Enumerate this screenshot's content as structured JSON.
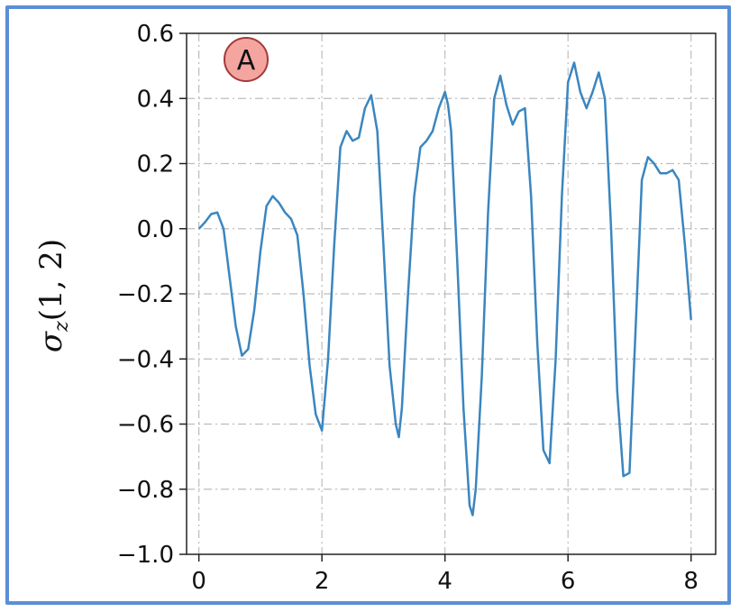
{
  "chart_data": {
    "type": "line",
    "ylabel": "σz(1, 2)",
    "panel_label": "A",
    "xlim": [
      -0.2,
      8.4
    ],
    "ylim": [
      -1.0,
      0.6
    ],
    "xticks": [
      "0",
      "2",
      "4",
      "6",
      "8"
    ],
    "yticks": [
      "0.6",
      "0.4",
      "0.2",
      "0.0",
      "−0.2",
      "−0.4",
      "−0.6",
      "−0.8",
      "−1.0"
    ],
    "grid": true,
    "colors": {
      "line": "#3a86c0",
      "badge_fill": "#f4a5a0",
      "badge_stroke": "#a23b3b",
      "frame": "#5b8fd6"
    },
    "series": [
      {
        "x": [
          0.0,
          0.1,
          0.2,
          0.3,
          0.4,
          0.5,
          0.6,
          0.7,
          0.8,
          0.9,
          1.0,
          1.1,
          1.2,
          1.3,
          1.4,
          1.5,
          1.6,
          1.7,
          1.8,
          1.9,
          2.0,
          2.1,
          2.2,
          2.3,
          2.4,
          2.5,
          2.6,
          2.7,
          2.8,
          2.9,
          3.0,
          3.1,
          3.2,
          3.25,
          3.3,
          3.4,
          3.5,
          3.6,
          3.7,
          3.8,
          3.9,
          4.0,
          4.05,
          4.1,
          4.2,
          4.3,
          4.4,
          4.45,
          4.5,
          4.6,
          4.7,
          4.8,
          4.9,
          5.0,
          5.1,
          5.2,
          5.3,
          5.4,
          5.5,
          5.6,
          5.7,
          5.8,
          5.9,
          6.0,
          6.1,
          6.2,
          6.3,
          6.4,
          6.5,
          6.6,
          6.7,
          6.8,
          6.9,
          7.0,
          7.1,
          7.2,
          7.3,
          7.4,
          7.5,
          7.6,
          7.7,
          7.8,
          7.9,
          8.0
        ],
        "y": [
          0.0,
          0.02,
          0.045,
          0.05,
          0.0,
          -0.15,
          -0.3,
          -0.39,
          -0.37,
          -0.25,
          -0.07,
          0.07,
          0.1,
          0.08,
          0.05,
          0.03,
          -0.02,
          -0.2,
          -0.42,
          -0.57,
          -0.62,
          -0.4,
          -0.05,
          0.25,
          0.3,
          0.27,
          0.28,
          0.37,
          0.41,
          0.3,
          -0.05,
          -0.42,
          -0.6,
          -0.64,
          -0.55,
          -0.2,
          0.1,
          0.25,
          0.27,
          0.3,
          0.37,
          0.42,
          0.38,
          0.3,
          -0.1,
          -0.55,
          -0.85,
          -0.88,
          -0.8,
          -0.45,
          0.05,
          0.4,
          0.47,
          0.38,
          0.32,
          0.36,
          0.37,
          0.1,
          -0.35,
          -0.68,
          -0.72,
          -0.4,
          0.1,
          0.45,
          0.51,
          0.42,
          0.37,
          0.42,
          0.48,
          0.4,
          0.0,
          -0.5,
          -0.76,
          -0.75,
          -0.3,
          0.15,
          0.22,
          0.2,
          0.17,
          0.17,
          0.18,
          0.15,
          -0.05,
          -0.28
        ]
      }
    ]
  }
}
